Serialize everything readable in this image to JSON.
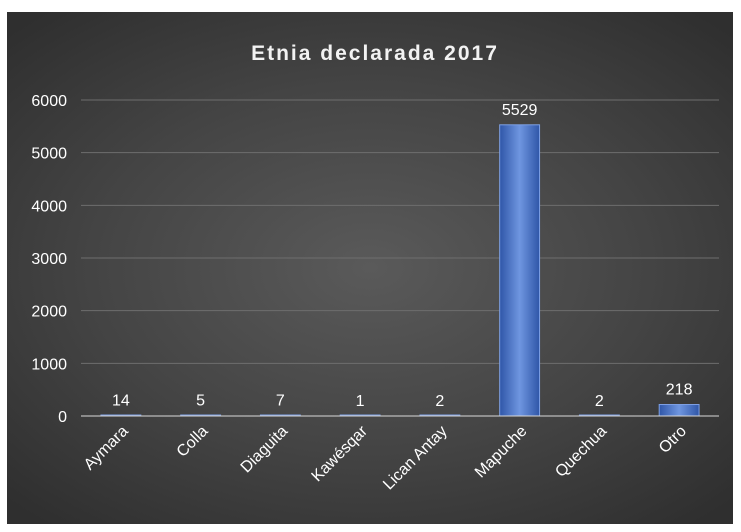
{
  "chart_data": {
    "type": "bar",
    "title": "Etnia declarada 2017",
    "categories": [
      "Aymara",
      "Colla",
      "Diaguita",
      "Kawésqar",
      "Lican Antay",
      "Mapuche",
      "Quechua",
      "Otro"
    ],
    "values": [
      14,
      5,
      7,
      1,
      2,
      5529,
      2,
      218
    ],
    "yticks": [
      0,
      1000,
      2000,
      3000,
      4000,
      5000,
      6000
    ],
    "ylim": [
      0,
      6000
    ],
    "xlabel": "",
    "ylabel": "",
    "grid": true,
    "legend": "none",
    "colors": {
      "bar": "#4472c4",
      "bar_light": "#7ea1e6",
      "bar_dark": "#2f56a8",
      "text": "#ffffff",
      "grid": "#6e6e6e",
      "axis": "#d9d9d9"
    }
  }
}
